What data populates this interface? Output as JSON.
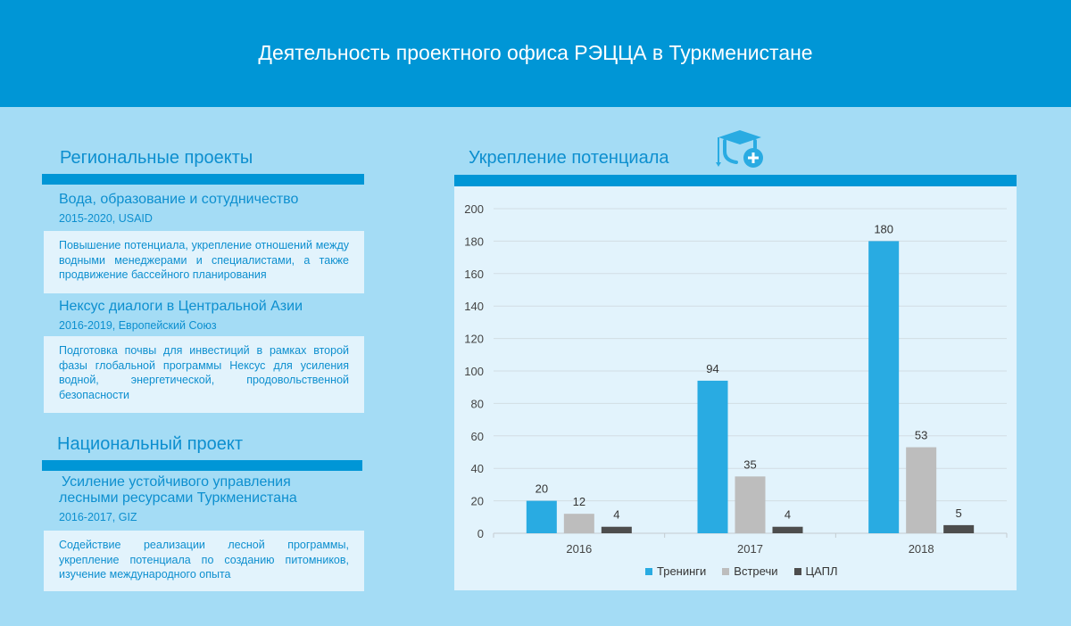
{
  "header": {
    "title": "Деятельность проектного офиса РЭЦЦА в Туркменистане"
  },
  "regional": {
    "title": "Региональные проекты",
    "projects": [
      {
        "name": "Вода, образование и сотудничество",
        "meta": "2015-2020, USAID",
        "description": "Повышение потенциала, укрепление отношений между водными менеджерами и специалистами, а также продвижение бассейного планирования"
      },
      {
        "name": "Нексус диалоги в Центральной Азии",
        "meta": "2016-2019, Европейский Союз",
        "description": "Подготовка почвы для  инвестиций в рамках второй фазы глобальной программы Нексус для усиления водной, энергетической, продовольственной безопасности"
      }
    ]
  },
  "national": {
    "title": "Национальный проект",
    "project": {
      "name_line1": "Усиление устойчивого управления",
      "name_line2": "лесными ресурсами Туркменистана",
      "meta": "2016-2017, GIZ",
      "description": "Содействие реализации лесной программы, укрепление потенциала по созданию питомников, изучение международного опыта"
    }
  },
  "capacity": {
    "title": "Укрепление потенциала",
    "icon": "graduation-cap-plus-icon"
  },
  "chart_data": {
    "type": "bar",
    "title": "",
    "xlabel": "",
    "ylabel": "",
    "categories": [
      "2016",
      "2017",
      "2018"
    ],
    "series": [
      {
        "name": "Тренинги",
        "color": "#29abe2",
        "values": [
          20,
          94,
          180
        ]
      },
      {
        "name": "Встречи",
        "color": "#bdbdbd",
        "values": [
          12,
          35,
          53
        ]
      },
      {
        "name": "ЦАПЛ",
        "color": "#4d4d4d",
        "values": [
          4,
          4,
          5
        ]
      }
    ],
    "ylim": [
      0,
      200
    ],
    "yticks": [
      0,
      20,
      40,
      60,
      80,
      100,
      120,
      140,
      160,
      180,
      200
    ],
    "grid": true,
    "legend": "bottom"
  }
}
